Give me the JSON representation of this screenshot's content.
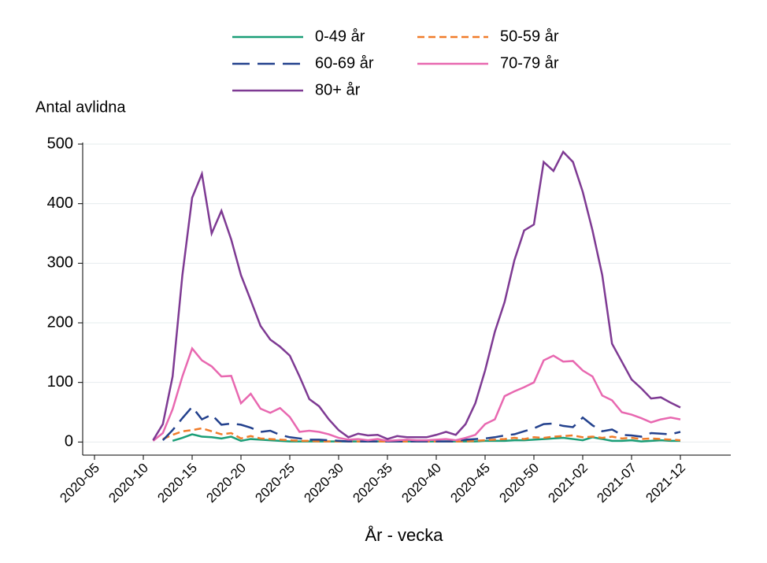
{
  "chart_data": {
    "type": "line",
    "y_label": "Antal avlidna",
    "x_label": "År - vecka",
    "categories": [
      null,
      "2020-05",
      null,
      null,
      null,
      null,
      "2020-10",
      null,
      null,
      null,
      null,
      "2020-15",
      null,
      null,
      null,
      null,
      "2020-20",
      null,
      null,
      null,
      null,
      "2020-25",
      null,
      null,
      null,
      null,
      "2020-30",
      null,
      null,
      null,
      null,
      "2020-35",
      null,
      null,
      null,
      null,
      "2020-40",
      null,
      null,
      null,
      null,
      "2020-45",
      null,
      null,
      null,
      null,
      "2020-50",
      null,
      null,
      null,
      null,
      "2021-02",
      null,
      null,
      null,
      null,
      "2021-07",
      null,
      null,
      null,
      null,
      "2021-12",
      null,
      null,
      null,
      null,
      null
    ],
    "series": [
      {
        "name": "0-49 år",
        "color": "#1a9e77",
        "values": [
          null,
          null,
          null,
          null,
          null,
          null,
          null,
          null,
          null,
          2,
          7,
          13,
          9,
          8,
          6,
          9,
          2,
          5,
          4,
          3,
          2,
          1,
          1,
          1,
          1,
          1,
          1,
          1,
          1,
          1,
          1,
          1,
          1,
          1,
          1,
          1,
          1,
          1,
          1,
          1,
          1,
          2,
          2,
          2,
          3,
          3,
          4,
          5,
          6,
          7,
          5,
          3,
          8,
          5,
          2,
          2,
          3,
          1,
          2,
          3,
          2,
          2,
          null,
          null,
          null,
          null,
          null
        ]
      },
      {
        "name": "50-59 år",
        "color": "#f07c2a",
        "values": [
          null,
          null,
          null,
          null,
          null,
          null,
          null,
          null,
          5,
          12,
          18,
          20,
          23,
          18,
          13,
          15,
          6,
          10,
          6,
          5,
          4,
          3,
          2,
          2,
          1,
          1,
          1,
          1,
          1,
          1,
          1,
          1,
          1,
          1,
          1,
          1,
          1,
          1,
          1,
          1,
          2,
          3,
          4,
          5,
          7,
          5,
          8,
          7,
          9,
          10,
          11,
          8,
          9,
          7,
          9,
          6,
          7,
          5,
          6,
          5,
          4,
          3,
          null,
          null,
          null,
          null,
          null
        ]
      },
      {
        "name": "60-69 år",
        "color": "#23418d",
        "values": [
          null,
          null,
          null,
          null,
          null,
          null,
          null,
          null,
          3,
          20,
          40,
          59,
          38,
          46,
          29,
          31,
          29,
          24,
          17,
          19,
          12,
          8,
          6,
          4,
          4,
          3,
          2,
          1,
          1,
          1,
          1,
          1,
          1,
          1,
          1,
          1,
          1,
          1,
          1,
          4,
          5,
          6,
          8,
          11,
          13,
          18,
          23,
          30,
          31,
          27,
          25,
          41,
          28,
          18,
          21,
          12,
          11,
          9,
          15,
          14,
          13,
          17,
          null,
          null,
          null,
          null,
          null
        ]
      },
      {
        "name": "70-79 år",
        "color": "#e868b0",
        "values": [
          null,
          null,
          null,
          null,
          null,
          null,
          null,
          2,
          15,
          55,
          110,
          157,
          137,
          127,
          110,
          111,
          65,
          81,
          56,
          49,
          57,
          42,
          17,
          19,
          17,
          13,
          7,
          4,
          5,
          3,
          5,
          2,
          3,
          4,
          3,
          3,
          4,
          5,
          3,
          7,
          12,
          30,
          38,
          77,
          85,
          92,
          100,
          137,
          145,
          135,
          136,
          120,
          110,
          78,
          70,
          50,
          46,
          40,
          33,
          38,
          41,
          38,
          null,
          null,
          null,
          null,
          null
        ]
      },
      {
        "name": "80+ år",
        "color": "#7e3a93",
        "values": [
          null,
          null,
          null,
          null,
          null,
          null,
          null,
          3,
          30,
          110,
          280,
          410,
          450,
          350,
          388,
          340,
          280,
          238,
          195,
          172,
          160,
          145,
          110,
          72,
          60,
          38,
          20,
          8,
          14,
          11,
          12,
          5,
          10,
          8,
          8,
          8,
          12,
          17,
          12,
          30,
          65,
          120,
          185,
          235,
          305,
          355,
          365,
          470,
          455,
          487,
          470,
          420,
          355,
          280,
          165,
          135,
          105,
          90,
          73,
          75,
          66,
          58,
          null,
          null,
          null,
          null,
          null
        ]
      }
    ],
    "ylim": [
      -22,
      500
    ],
    "yticks": [
      0,
      100,
      200,
      300,
      400,
      500
    ],
    "grid": true,
    "legend": "top"
  }
}
